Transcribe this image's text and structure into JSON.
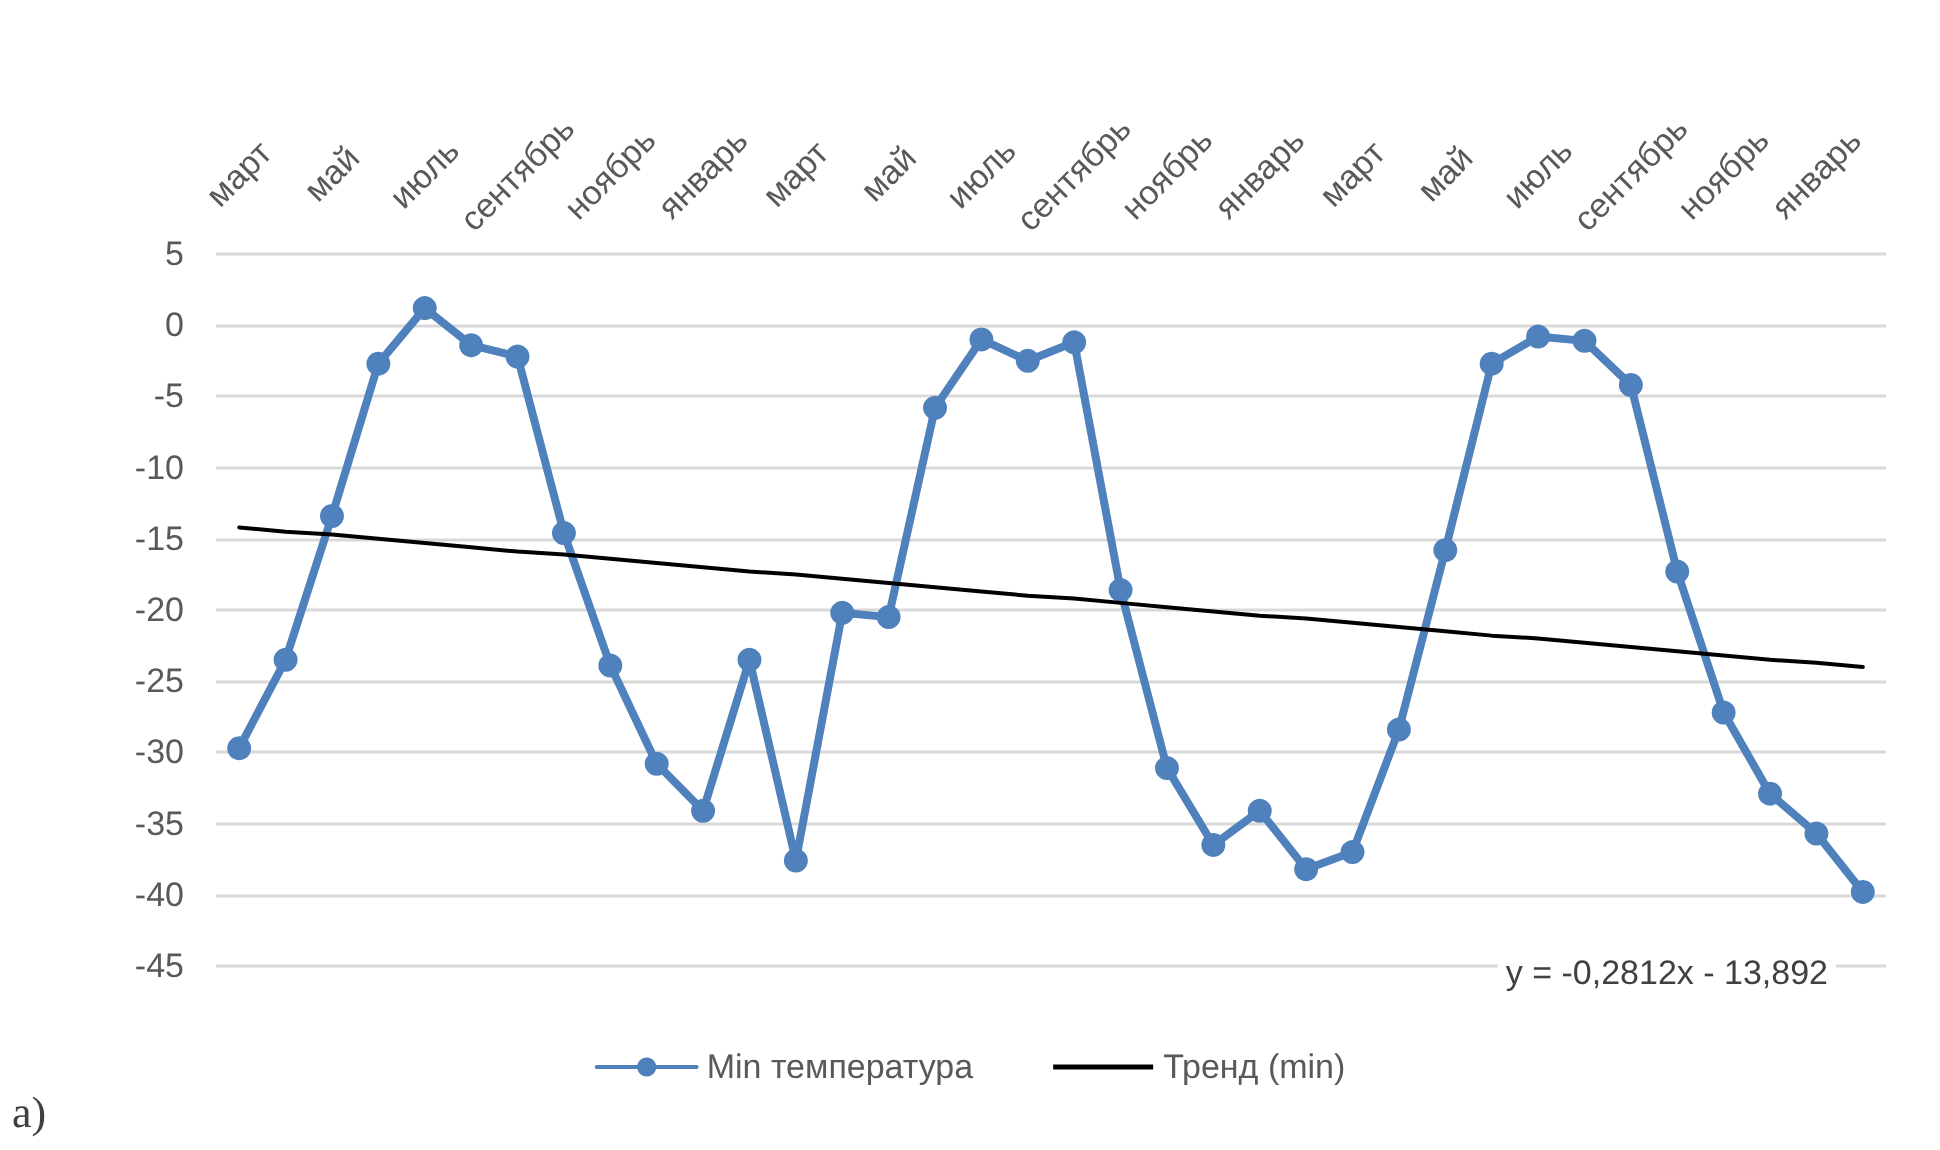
{
  "chart_data": {
    "type": "line",
    "categories": [
      "март",
      null,
      "май",
      null,
      "июль",
      null,
      "сентябрь",
      null,
      "ноябрь",
      null,
      "январь",
      null,
      "март",
      null,
      "май",
      null,
      "июль",
      null,
      "сентябрь",
      null,
      "ноябрь",
      null,
      "январь",
      null,
      "март",
      null,
      "май",
      null,
      "июль",
      null,
      "сентябрь",
      null,
      "ноябрь",
      null,
      "январь",
      null
    ],
    "series": [
      {
        "name": "Min температура",
        "color": "#4f81bd",
        "values": [
          -29.7,
          -23.5,
          -13.4,
          -2.7,
          1.2,
          -1.4,
          -2.2,
          -14.6,
          -23.9,
          -30.8,
          -34.1,
          -23.5,
          -37.6,
          -20.2,
          -20.5,
          -5.8,
          -1.0,
          -2.5,
          -1.2,
          -18.6,
          -31.1,
          -36.5,
          -34.1,
          -38.2,
          -37.0,
          -28.4,
          -15.8,
          -2.7,
          -0.8,
          -1.1,
          -4.2,
          -17.3,
          -27.2,
          -32.9,
          -35.7,
          -39.8
        ]
      },
      {
        "name": "Тренд (min)",
        "color": "#000000",
        "marker": "none",
        "values": [
          -14.2,
          -14.5,
          -14.7,
          -15.0,
          -15.3,
          -15.6,
          -15.9,
          -16.1,
          -16.4,
          -16.7,
          -17.0,
          -17.3,
          -17.5,
          -17.8,
          -18.1,
          -18.4,
          -18.7,
          -19.0,
          -19.2,
          -19.5,
          -19.8,
          -20.1,
          -20.4,
          -20.6,
          -20.9,
          -21.2,
          -21.5,
          -21.8,
          -22.0,
          -22.3,
          -22.6,
          -22.9,
          -23.2,
          -23.5,
          -23.7,
          -24.0
        ]
      }
    ],
    "ylim": [
      -45,
      5
    ],
    "yticks": [
      5,
      0,
      -5,
      -10,
      -15,
      -20,
      -25,
      -30,
      -35,
      -40,
      -45
    ],
    "grid": "y",
    "legend": "bottom",
    "marker": "circle",
    "line_style": "solid",
    "annotations": [
      {
        "text": "y = -0,2812x - 13,892"
      },
      "а)"
    ]
  }
}
